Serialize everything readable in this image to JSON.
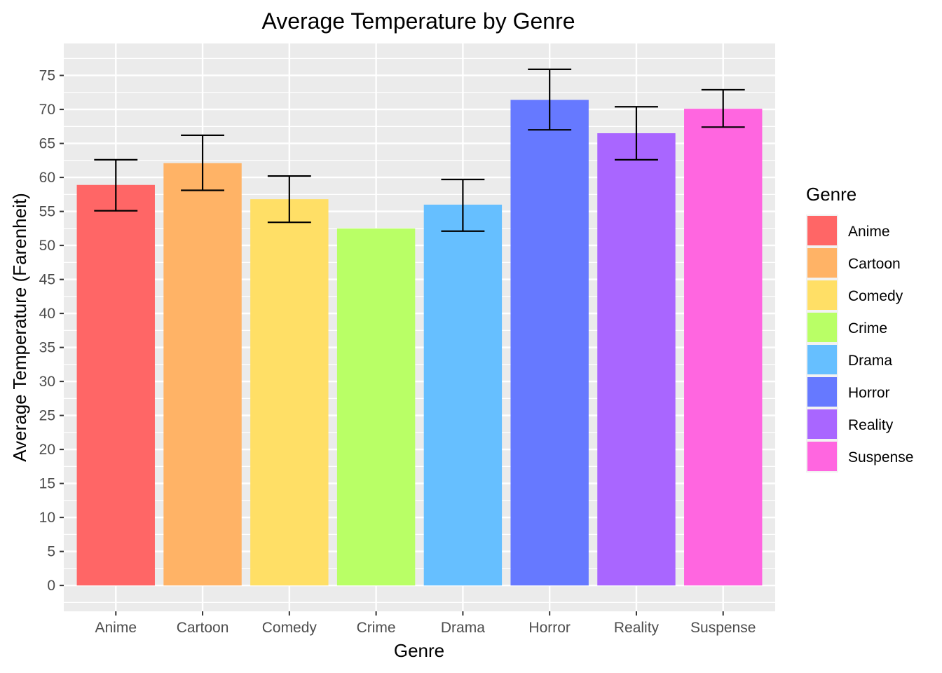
{
  "chart_data": {
    "type": "bar",
    "title": "Average Temperature by Genre",
    "xlabel": "Genre",
    "ylabel": "Average Temperature (Farenheit)",
    "categories": [
      "Anime",
      "Cartoon",
      "Comedy",
      "Crime",
      "Drama",
      "Horror",
      "Reality",
      "Suspense"
    ],
    "values": [
      58.9,
      62.1,
      56.8,
      52.5,
      56.0,
      71.4,
      66.5,
      70.1
    ],
    "error_low": [
      55.1,
      58.1,
      53.4,
      null,
      52.1,
      67.0,
      62.6,
      67.4
    ],
    "error_high": [
      62.6,
      66.2,
      60.2,
      null,
      59.7,
      75.9,
      70.4,
      72.9
    ],
    "colors": [
      "#FF6666",
      "#FFB366",
      "#FFDF66",
      "#B9FF66",
      "#66BFFF",
      "#6679FF",
      "#A966FF",
      "#FF66E0"
    ],
    "yticks": [
      0,
      5,
      10,
      15,
      20,
      25,
      30,
      35,
      40,
      45,
      50,
      55,
      60,
      65,
      70,
      75
    ],
    "ylim": [
      -3.8,
      79.7
    ],
    "grid": true,
    "legend": {
      "title": "Genre",
      "placement": "right",
      "entries": [
        "Anime",
        "Cartoon",
        "Comedy",
        "Crime",
        "Drama",
        "Horror",
        "Reality",
        "Suspense"
      ]
    }
  }
}
